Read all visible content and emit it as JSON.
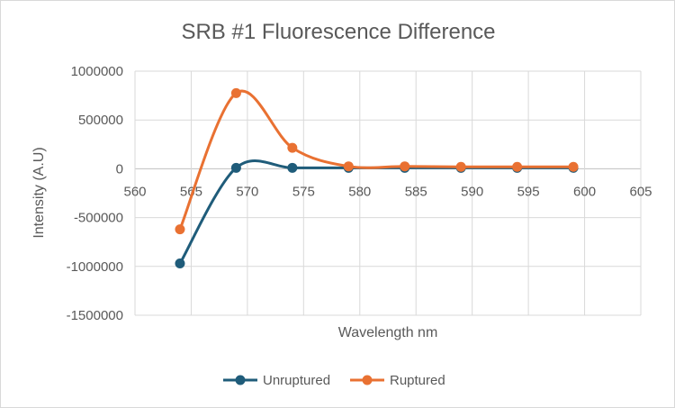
{
  "chart_data": {
    "type": "scatter",
    "title": "SRB #1 Fluorescence Difference",
    "xlabel": "Wavelength nm",
    "ylabel": "Intensity (A.U)",
    "xlim": [
      560,
      605
    ],
    "ylim": [
      -1500000,
      1000000
    ],
    "x_ticks": [
      "560",
      "565",
      "570",
      "575",
      "580",
      "585",
      "590",
      "595",
      "600",
      "605"
    ],
    "y_ticks": [
      "1000000",
      "500000",
      "0",
      "-500000",
      "-1000000",
      "-1500000"
    ],
    "grid": true,
    "smooth_lines": true,
    "legend_position": "bottom",
    "series": [
      {
        "name": "Unruptured",
        "color": "#1f5c7a",
        "x": [
          564,
          569,
          574,
          579,
          584,
          589,
          594,
          599
        ],
        "y": [
          -970000,
          10000,
          10000,
          10000,
          10000,
          10000,
          10000,
          10000
        ]
      },
      {
        "name": "Ruptured",
        "color": "#e97132",
        "x": [
          564,
          569,
          574,
          579,
          584,
          589,
          594,
          599
        ],
        "y": [
          -620000,
          775000,
          215000,
          25000,
          25000,
          20000,
          20000,
          20000
        ]
      }
    ]
  }
}
